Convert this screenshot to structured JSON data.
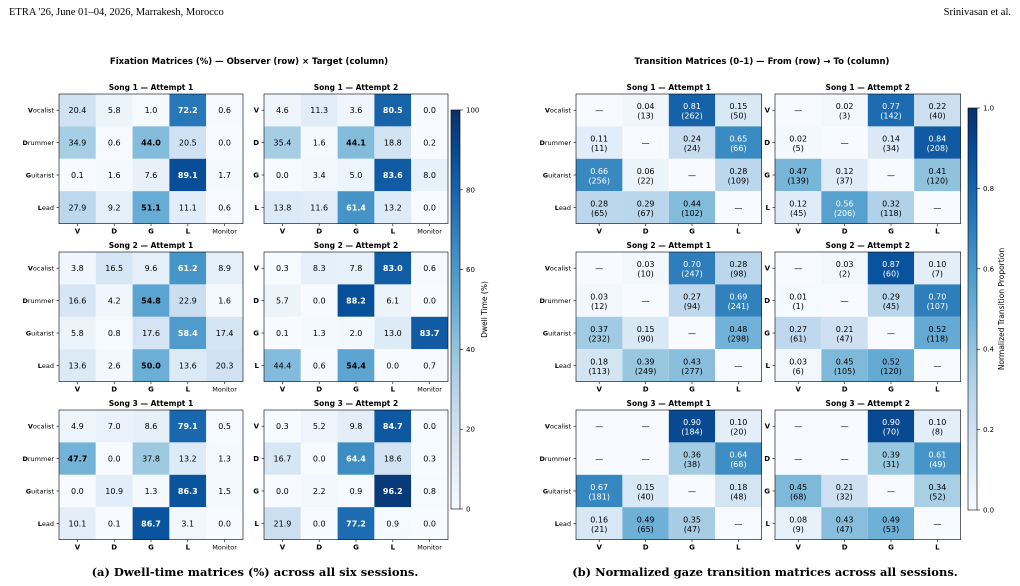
{
  "header": {
    "left": "ETRA '26, June 01–04, 2026, Marrakesh, Morocco",
    "right": "Srinivasan et al."
  },
  "captions": {
    "a": "(a) Dwell-time matrices (%) across all six sessions.",
    "b": "(b) Normalized gaze transition matrices across all sessions."
  },
  "chart_data": [
    {
      "type": "heatmap",
      "title": "Fixation Matrices (%) — Observer (row) × Target (column)",
      "row_labels": [
        "Vocalist",
        "Drummer",
        "Guitarist",
        "Lead"
      ],
      "row_labels_short": [
        "V",
        "D",
        "G",
        "L"
      ],
      "col_labels": [
        "V",
        "D",
        "G",
        "L",
        "Monitor"
      ],
      "colorbar": {
        "label": "Dwell Time (%)",
        "min": 0,
        "max": 100,
        "ticks": [
          0,
          20,
          40,
          60,
          80,
          100
        ]
      },
      "panels": [
        {
          "title": "Song 1 — Attempt 1",
          "values": [
            [
              20.4,
              5.8,
              1.0,
              72.2,
              0.6
            ],
            [
              34.9,
              0.6,
              44.0,
              20.5,
              0.0
            ],
            [
              0.1,
              1.6,
              7.6,
              89.1,
              1.7
            ],
            [
              27.9,
              9.2,
              51.1,
              11.1,
              0.6
            ]
          ]
        },
        {
          "title": "Song 1 — Attempt 2",
          "values": [
            [
              4.6,
              11.3,
              3.6,
              80.5,
              0.0
            ],
            [
              35.4,
              1.6,
              44.1,
              18.8,
              0.2
            ],
            [
              0.0,
              3.4,
              5.0,
              83.6,
              8.0
            ],
            [
              13.8,
              11.6,
              61.4,
              13.2,
              0.0
            ]
          ]
        },
        {
          "title": "Song 2 — Attempt 1",
          "values": [
            [
              3.8,
              16.5,
              9.6,
              61.2,
              8.9
            ],
            [
              16.6,
              4.2,
              54.8,
              22.9,
              1.6
            ],
            [
              5.8,
              0.8,
              17.6,
              58.4,
              17.4
            ],
            [
              13.6,
              2.6,
              50.0,
              13.6,
              20.3
            ]
          ]
        },
        {
          "title": "Song 2 — Attempt 2",
          "values": [
            [
              0.3,
              8.3,
              7.8,
              83.0,
              0.6
            ],
            [
              5.7,
              0.0,
              88.2,
              6.1,
              0.0
            ],
            [
              0.1,
              1.3,
              2.0,
              13.0,
              83.7
            ],
            [
              44.4,
              0.6,
              54.4,
              0.0,
              0.7
            ]
          ]
        },
        {
          "title": "Song 3 — Attempt 1",
          "values": [
            [
              4.9,
              7.0,
              8.6,
              79.1,
              0.5
            ],
            [
              47.7,
              0.0,
              37.8,
              13.2,
              1.3
            ],
            [
              0.0,
              10.9,
              1.3,
              86.3,
              1.5
            ],
            [
              10.1,
              0.1,
              86.7,
              3.1,
              0.0
            ]
          ]
        },
        {
          "title": "Song 3 — Attempt 2",
          "values": [
            [
              0.3,
              5.2,
              9.8,
              84.7,
              0.0
            ],
            [
              16.7,
              0.0,
              64.4,
              18.6,
              0.3
            ],
            [
              0.0,
              2.2,
              0.9,
              96.2,
              0.8
            ],
            [
              21.9,
              0.0,
              77.2,
              0.9,
              0.0
            ]
          ]
        }
      ]
    },
    {
      "type": "heatmap",
      "title": "Transition Matrices (0–1) — From (row) → To (column)",
      "row_labels": [
        "Vocalist",
        "Drummer",
        "Guitarist",
        "Lead"
      ],
      "row_labels_short": [
        "V",
        "D",
        "G",
        "L"
      ],
      "col_labels": [
        "V",
        "D",
        "G",
        "L"
      ],
      "diagonal_text": "—",
      "colorbar": {
        "label": "Normalized Transition Proportion",
        "min": 0,
        "max": 1,
        "ticks": [
          0.0,
          0.2,
          0.4,
          0.6,
          0.8,
          1.0
        ]
      },
      "panels": [
        {
          "title": "Song 1 — Attempt 1",
          "values": [
            [
              null,
              0.04,
              0.81,
              0.15
            ],
            [
              0.11,
              null,
              0.24,
              0.65
            ],
            [
              0.66,
              0.06,
              null,
              0.28
            ],
            [
              0.28,
              0.29,
              0.44,
              null
            ]
          ],
          "counts": [
            [
              null,
              13,
              262,
              50
            ],
            [
              11,
              null,
              24,
              66
            ],
            [
              256,
              22,
              null,
              109
            ],
            [
              65,
              67,
              102,
              null
            ]
          ]
        },
        {
          "title": "Song 1 — Attempt 2",
          "values": [
            [
              null,
              0.02,
              0.77,
              0.22
            ],
            [
              0.02,
              null,
              0.14,
              0.84
            ],
            [
              0.47,
              0.12,
              null,
              0.41
            ],
            [
              0.12,
              0.56,
              0.32,
              null
            ]
          ],
          "counts": [
            [
              null,
              3,
              142,
              40
            ],
            [
              5,
              null,
              34,
              208
            ],
            [
              139,
              37,
              null,
              120
            ],
            [
              45,
              206,
              118,
              null
            ]
          ]
        },
        {
          "title": "Song 2 — Attempt 1",
          "values": [
            [
              null,
              0.03,
              0.7,
              0.28
            ],
            [
              0.03,
              null,
              0.27,
              0.69
            ],
            [
              0.37,
              0.15,
              null,
              0.48
            ],
            [
              0.18,
              0.39,
              0.43,
              null
            ]
          ],
          "counts": [
            [
              null,
              10,
              247,
              98
            ],
            [
              12,
              null,
              94,
              241
            ],
            [
              232,
              90,
              null,
              298
            ],
            [
              113,
              249,
              277,
              null
            ]
          ]
        },
        {
          "title": "Song 2 — Attempt 2",
          "values": [
            [
              null,
              0.03,
              0.87,
              0.1
            ],
            [
              0.01,
              null,
              0.29,
              0.7
            ],
            [
              0.27,
              0.21,
              null,
              0.52
            ],
            [
              0.03,
              0.45,
              0.52,
              null
            ]
          ],
          "counts": [
            [
              null,
              2,
              60,
              7
            ],
            [
              1,
              null,
              45,
              107
            ],
            [
              61,
              47,
              null,
              118
            ],
            [
              6,
              105,
              120,
              null
            ]
          ]
        },
        {
          "title": "Song 3 — Attempt 1",
          "values": [
            [
              null,
              null,
              0.9,
              0.1
            ],
            [
              null,
              null,
              0.36,
              0.64
            ],
            [
              0.67,
              0.15,
              null,
              0.18
            ],
            [
              0.16,
              0.49,
              0.35,
              null
            ]
          ],
          "counts": [
            [
              null,
              null,
              184,
              20
            ],
            [
              null,
              null,
              38,
              68
            ],
            [
              181,
              40,
              null,
              48
            ],
            [
              21,
              65,
              47,
              null
            ]
          ]
        },
        {
          "title": "Song 3 — Attempt 2",
          "values": [
            [
              null,
              null,
              0.9,
              0.1
            ],
            [
              null,
              null,
              0.39,
              0.61
            ],
            [
              0.45,
              0.21,
              null,
              0.34
            ],
            [
              0.08,
              0.43,
              0.49,
              null
            ]
          ],
          "counts": [
            [
              null,
              null,
              70,
              8
            ],
            [
              null,
              null,
              31,
              49
            ],
            [
              68,
              32,
              null,
              52
            ],
            [
              9,
              47,
              53,
              null
            ]
          ]
        }
      ]
    }
  ]
}
